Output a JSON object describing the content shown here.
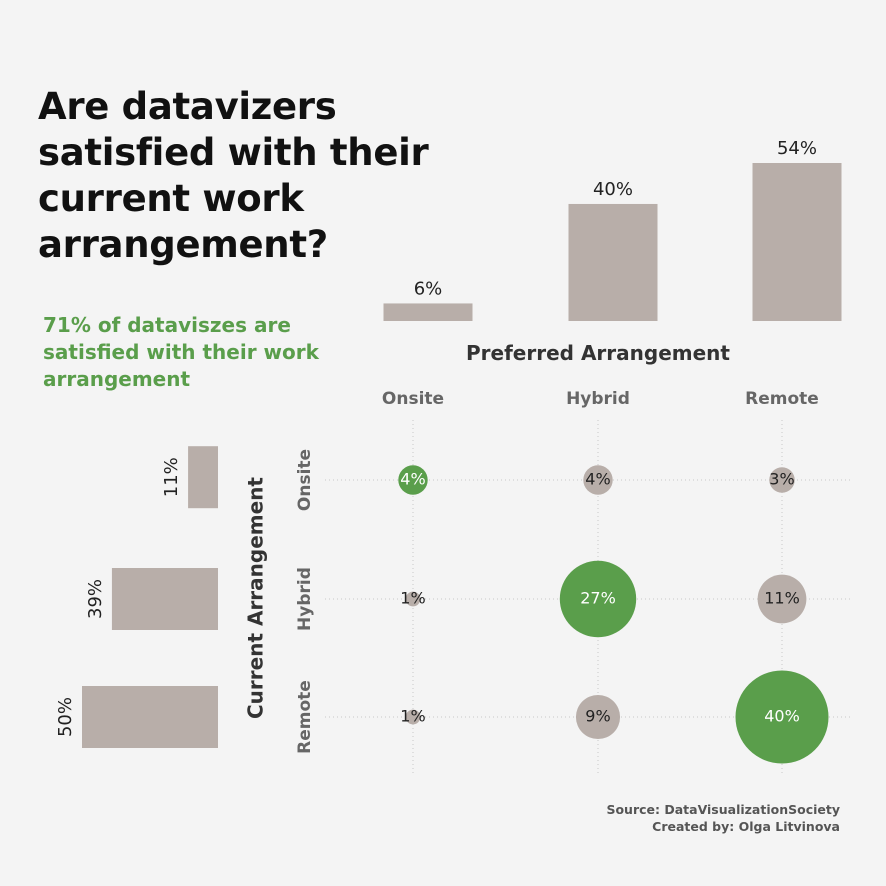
{
  "title": "Are datavizers satisfied with their current work arrangement?",
  "subtitle": "71% of dataviszes are satisfied with their work arrangement",
  "source": "Source: DataVisualizationSociety",
  "credit": "Created by: Olga Litvinova",
  "colors": {
    "satisfied": "#5a9e4b",
    "neutral": "#b8aea9",
    "background": "#f4f4f4"
  },
  "chart_data": [
    {
      "type": "bar",
      "orientation": "vertical",
      "xlabel": "Preferred Arrangement",
      "categories": [
        "Onsite",
        "Hybrid",
        "Remote"
      ],
      "values": [
        6,
        40,
        54
      ],
      "labels": [
        "6%",
        "40%",
        "54%"
      ],
      "unit": "%"
    },
    {
      "type": "bar",
      "orientation": "horizontal",
      "ylabel": "Current Arrangement",
      "categories": [
        "Onsite",
        "Hybrid",
        "Remote"
      ],
      "values": [
        11,
        39,
        50
      ],
      "labels": [
        "11%",
        "39%",
        "50%"
      ],
      "unit": "%"
    },
    {
      "type": "scatter",
      "subtype": "bubble-matrix",
      "xlabel": "Preferred Arrangement",
      "ylabel": "Current Arrangement",
      "x_categories": [
        "Onsite",
        "Hybrid",
        "Remote"
      ],
      "y_categories": [
        "Onsite",
        "Hybrid",
        "Remote"
      ],
      "cells": [
        {
          "current": "Onsite",
          "preferred": "Onsite",
          "value": 4,
          "label": "4%",
          "satisfied": true
        },
        {
          "current": "Onsite",
          "preferred": "Hybrid",
          "value": 4,
          "label": "4%",
          "satisfied": false
        },
        {
          "current": "Onsite",
          "preferred": "Remote",
          "value": 3,
          "label": "3%",
          "satisfied": false
        },
        {
          "current": "Hybrid",
          "preferred": "Onsite",
          "value": 1,
          "label": "1%",
          "satisfied": false
        },
        {
          "current": "Hybrid",
          "preferred": "Hybrid",
          "value": 27,
          "label": "27%",
          "satisfied": true
        },
        {
          "current": "Hybrid",
          "preferred": "Remote",
          "value": 11,
          "label": "11%",
          "satisfied": false
        },
        {
          "current": "Remote",
          "preferred": "Onsite",
          "value": 1,
          "label": "1%",
          "satisfied": false
        },
        {
          "current": "Remote",
          "preferred": "Hybrid",
          "value": 9,
          "label": "9%",
          "satisfied": false
        },
        {
          "current": "Remote",
          "preferred": "Remote",
          "value": 40,
          "label": "40%",
          "satisfied": true
        }
      ],
      "grid": true
    }
  ]
}
